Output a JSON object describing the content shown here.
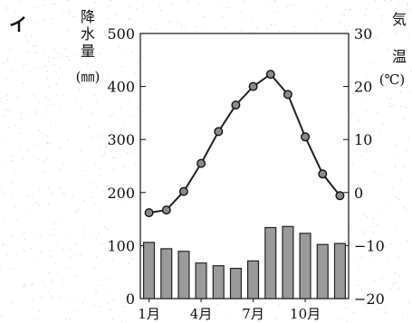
{
  "chart_data": {
    "type": "bar+line",
    "panel_label": "イ",
    "categories": [
      "1月",
      "2月",
      "3月",
      "4月",
      "5月",
      "6月",
      "7月",
      "8月",
      "9月",
      "10月",
      "11月",
      "12月"
    ],
    "x_tick_labels": [
      "1月",
      "4月",
      "7月",
      "10月"
    ],
    "series": [
      {
        "type": "bar",
        "axis": "left",
        "values": [
          106,
          94,
          89,
          67,
          62,
          57,
          71,
          134,
          136,
          123,
          102,
          104
        ]
      },
      {
        "type": "line",
        "axis": "right",
        "values": [
          -3.8,
          -3.3,
          0.2,
          5.5,
          11.5,
          16.5,
          20.0,
          22.3,
          18.5,
          10.5,
          3.5,
          -0.6
        ]
      }
    ],
    "left_axis": {
      "label_chars": [
        "降",
        "水",
        "量"
      ],
      "unit": "(㎜)",
      "ylim": [
        0,
        500
      ],
      "ticks": [
        "0",
        "100",
        "200",
        "300",
        "400",
        "500"
      ]
    },
    "right_axis": {
      "label_chars": [
        "気",
        "温"
      ],
      "unit": "(℃)",
      "ylim": [
        -20,
        30
      ],
      "ticks": [
        "-20",
        "-10",
        "0",
        "10",
        "20",
        "30"
      ]
    },
    "colors": {
      "bar_fill": "#9a9a9a",
      "bar_stroke": "#222222",
      "line": "#222222",
      "marker": "#8a8a8a"
    }
  }
}
